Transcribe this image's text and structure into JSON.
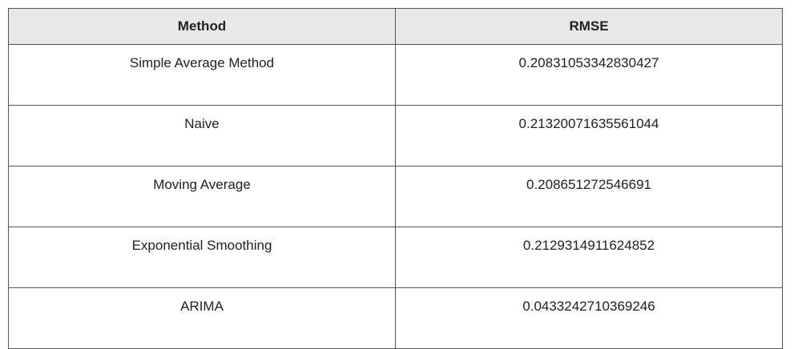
{
  "table": {
    "headers": [
      "Method",
      "RMSE"
    ],
    "rows": [
      [
        "Simple Average Method",
        "0.20831053342830427"
      ],
      [
        "Naive",
        "0.21320071635561044"
      ],
      [
        "Moving Average",
        "0.208651272546691"
      ],
      [
        "Exponential Smoothing",
        "0.2129314911624852"
      ],
      [
        "ARIMA",
        "0.0433242710369246"
      ]
    ]
  }
}
